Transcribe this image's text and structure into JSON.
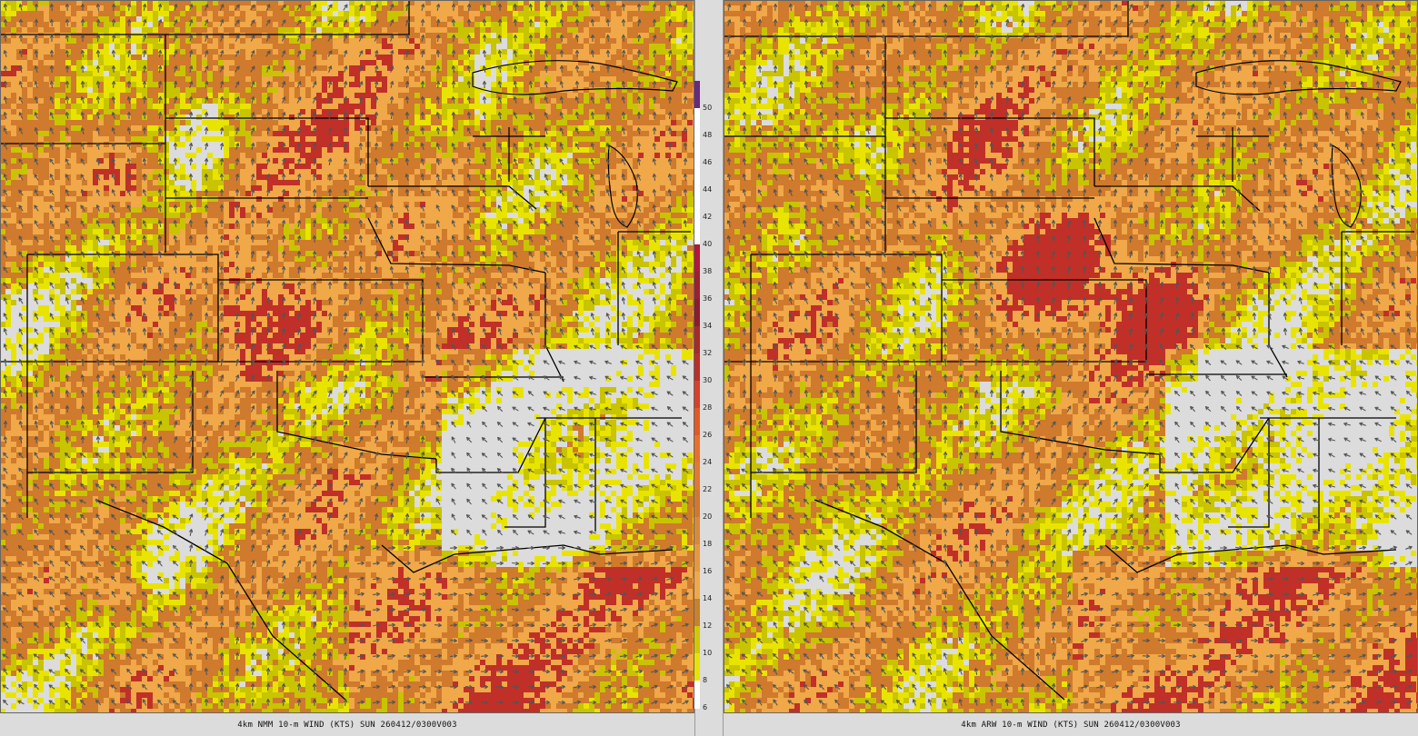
{
  "panels": [
    {
      "id": "left",
      "caption": "4km NMM 10-m WIND (KTS) SUN 260412/0300V003",
      "seed": 17
    },
    {
      "id": "right",
      "caption": "4km ARW 10-m WIND (KTS) SUN 260412/0300V003",
      "seed": 91
    }
  ],
  "colorbar": {
    "unit": "KTS",
    "labels": [
      "50",
      "48",
      "46",
      "44",
      "42",
      "40",
      "38",
      "36",
      "34",
      "32",
      "30",
      "28",
      "26",
      "24",
      "22",
      "20",
      "18",
      "16",
      "14",
      "12",
      "10",
      "8",
      "6"
    ],
    "bins": [
      {
        "min": 50,
        "max": 52,
        "color": "#6a2a7a"
      },
      {
        "min": 48,
        "max": 50,
        "color": "#ffffff"
      },
      {
        "min": 46,
        "max": 48,
        "color": "#ffffff"
      },
      {
        "min": 44,
        "max": 46,
        "color": "#ffffff"
      },
      {
        "min": 42,
        "max": 44,
        "color": "#ffffff"
      },
      {
        "min": 40,
        "max": 42,
        "color": "#ffffff"
      },
      {
        "min": 38,
        "max": 40,
        "color": "#b0183a"
      },
      {
        "min": 36,
        "max": 38,
        "color": "#9b2030"
      },
      {
        "min": 34,
        "max": 36,
        "color": "#8c1c2c"
      },
      {
        "min": 32,
        "max": 34,
        "color": "#a52a2a"
      },
      {
        "min": 30,
        "max": 32,
        "color": "#b8302a"
      },
      {
        "min": 28,
        "max": 30,
        "color": "#d8402a"
      },
      {
        "min": 26,
        "max": 28,
        "color": "#e05a28"
      },
      {
        "min": 24,
        "max": 26,
        "color": "#e8702a"
      },
      {
        "min": 22,
        "max": 24,
        "color": "#e07a30"
      },
      {
        "min": 20,
        "max": 22,
        "color": "#d0782c"
      },
      {
        "min": 18,
        "max": 20,
        "color": "#d88a3a"
      },
      {
        "min": 16,
        "max": 18,
        "color": "#e8983c"
      },
      {
        "min": 14,
        "max": 16,
        "color": "#f0a848"
      },
      {
        "min": 12,
        "max": 14,
        "color": "#c88228"
      },
      {
        "min": 10,
        "max": 12,
        "color": "#d2c800"
      },
      {
        "min": 8,
        "max": 10,
        "color": "#e8e400"
      },
      {
        "min": 6,
        "max": 8,
        "color": "#ffffff"
      }
    ]
  },
  "legend_colors": {
    "background": "#dcdcdc",
    "speed_low": "#e8e400",
    "speed_mid": "#c8c400",
    "speed_high": "#cf7a2c",
    "speed_higher": "#f0a848",
    "speed_gust": "#c03028",
    "arrow": "#555555",
    "border": "#000000"
  }
}
